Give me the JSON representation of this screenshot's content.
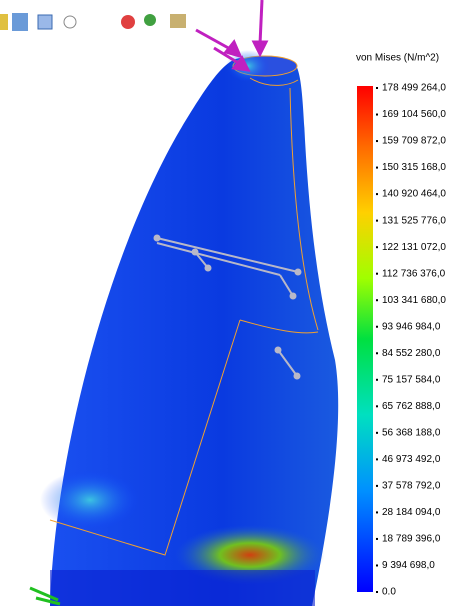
{
  "legend": {
    "title": "von Mises (N/m^2)",
    "labels": [
      "178 499 264,0",
      "169 104 560,0",
      "159 709 872,0",
      "150 315 168,0",
      "140 920 464,0",
      "131 525 776,0",
      "122 131 072,0",
      "112 736 376,0",
      "103 341 680,0",
      "93 946 984,0",
      "84 552 280,0",
      "75 157 584,0",
      "65 762 888,0",
      "56 368 188,0",
      "46 973 492,0",
      "37 578 792,0",
      "28 184 094,0",
      "18 789 396,0",
      "9 394 698,0",
      "0.0"
    ]
  }
}
